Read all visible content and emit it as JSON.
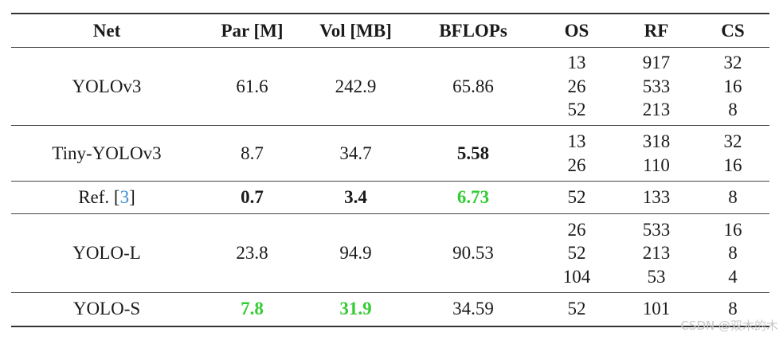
{
  "table": {
    "headers": [
      "Net",
      "Par [M]",
      "Vol [MB]",
      "BFLOPs",
      "OS",
      "RF",
      "CS"
    ],
    "rows": [
      {
        "net": "YOLOv3",
        "par": "61.6",
        "vol": "242.9",
        "bflops": "65.86",
        "os": [
          "13",
          "26",
          "52"
        ],
        "rf": [
          "917",
          "533",
          "213"
        ],
        "cs": [
          "32",
          "16",
          "8"
        ]
      },
      {
        "net": "Tiny-YOLOv3",
        "par": "8.7",
        "vol": "34.7",
        "bflops": "5.58",
        "os": [
          "13",
          "26"
        ],
        "rf": [
          "318",
          "110"
        ],
        "cs": [
          "32",
          "16"
        ]
      },
      {
        "net_prefix": "Ref. [",
        "net_ref": "3",
        "net_suffix": "]",
        "par": "0.7",
        "vol": "3.4",
        "bflops": "6.73",
        "os": [
          "52"
        ],
        "rf": [
          "133"
        ],
        "cs": [
          "8"
        ]
      },
      {
        "net": "YOLO-L",
        "par": "23.8",
        "vol": "94.9",
        "bflops": "90.53",
        "os": [
          "26",
          "52",
          "104"
        ],
        "rf": [
          "533",
          "213",
          "53"
        ],
        "cs": [
          "16",
          "8",
          "4"
        ]
      },
      {
        "net": "YOLO-S",
        "par": "7.8",
        "vol": "31.9",
        "bflops": "34.59",
        "os": [
          "52"
        ],
        "rf": [
          "101"
        ],
        "cs": [
          "8"
        ]
      }
    ]
  },
  "colors": {
    "highlight_green": "#33cc33",
    "link_blue": "#3a8fd6"
  },
  "watermark": "CSDN @双木的木"
}
